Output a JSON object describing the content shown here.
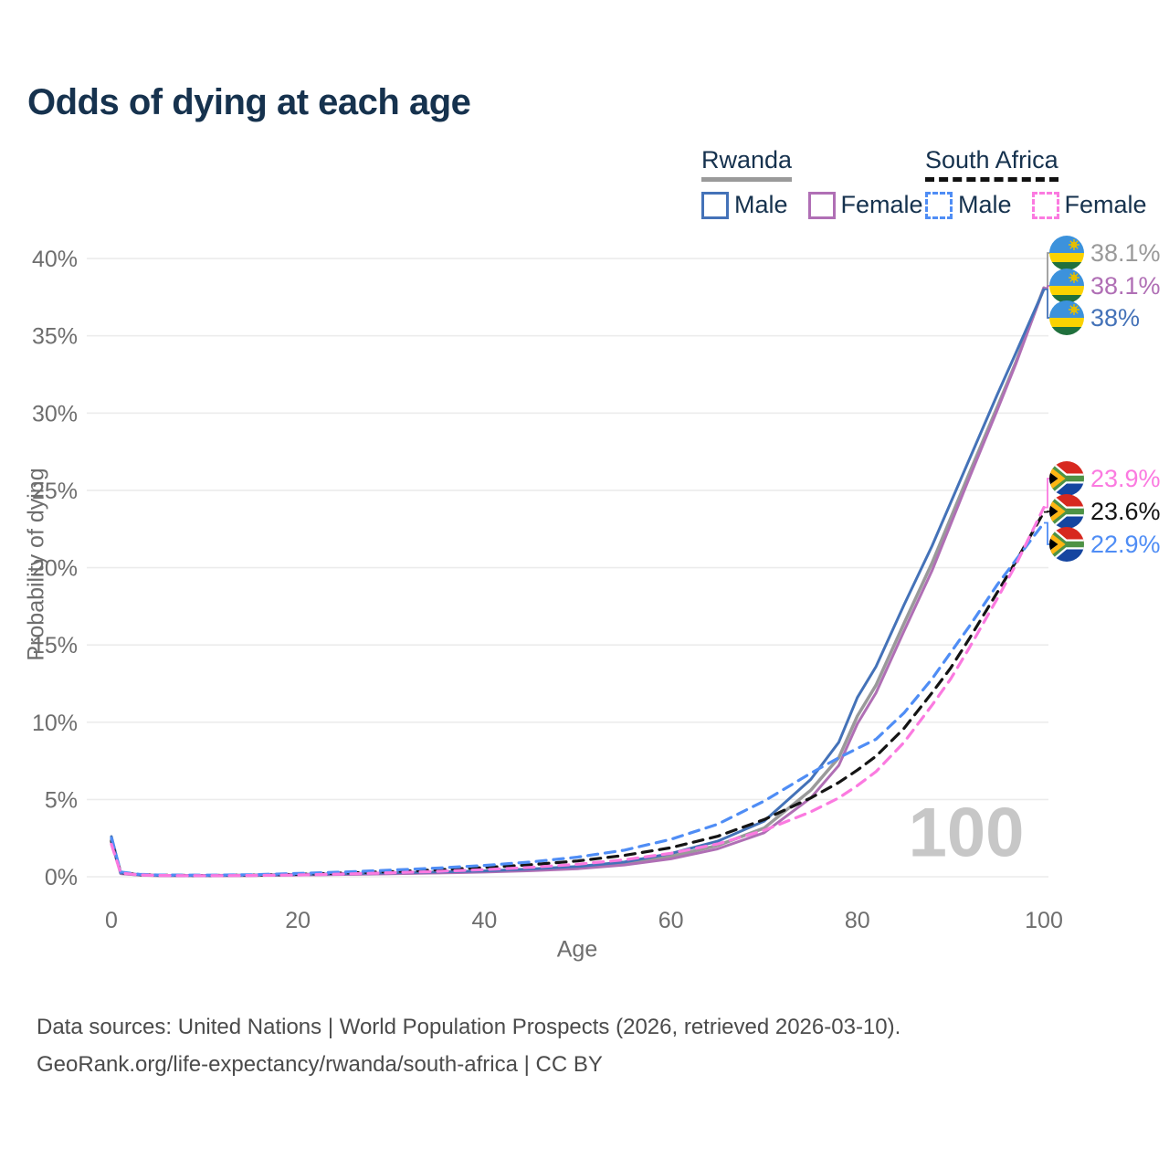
{
  "title": "Odds of dying at each age",
  "legend": {
    "rwanda": {
      "label": "Rwanda",
      "male": "Male",
      "female": "Female"
    },
    "south_africa": {
      "label": "South Africa",
      "male": "Male",
      "female": "Female"
    }
  },
  "axes": {
    "y_label": "Probability of dying",
    "x_label": "Age"
  },
  "watermark": "100",
  "footer": {
    "line1": "Data sources: United Nations | World Population Prospects (2026, retrieved 2026-03-10).",
    "line2": "GeoRank.org/life-expectancy/rwanda/south-africa | CC BY"
  },
  "colors": {
    "rwanda_male": "#4472b8",
    "rwanda_female": "#b06fb5",
    "rwanda_total": "#9a9a9a",
    "sa_male": "#4f8df5",
    "sa_female": "#fb7ae0",
    "sa_total": "#141414",
    "grid": "#ececec",
    "tick_text": "#6e6e6e",
    "title_text": "#16324e"
  },
  "end_labels": [
    {
      "series": "rwanda_total",
      "country": "rwanda",
      "value": "38.1%",
      "color": "#9a9a9a"
    },
    {
      "series": "rwanda_female",
      "country": "rwanda",
      "value": "38.1%",
      "color": "#b06fb5"
    },
    {
      "series": "rwanda_male",
      "country": "rwanda",
      "value": "38%",
      "color": "#4472b8"
    },
    {
      "series": "sa_female",
      "country": "south-africa",
      "value": "23.9%",
      "color": "#fb7ae0"
    },
    {
      "series": "sa_total",
      "country": "south-africa",
      "value": "23.6%",
      "color": "#141414"
    },
    {
      "series": "sa_male",
      "country": "south-africa",
      "value": "22.9%",
      "color": "#4f8df5"
    }
  ],
  "chart_data": {
    "type": "line",
    "title": "Odds of dying at each age",
    "xlabel": "Age",
    "ylabel": "Probability of dying",
    "xlim": [
      0,
      100
    ],
    "ylim_pct": [
      0,
      40
    ],
    "x_ticks": [
      0,
      20,
      40,
      60,
      80,
      100
    ],
    "y_ticks": [
      {
        "pct": 0,
        "label": "0%"
      },
      {
        "pct": 5,
        "label": "5%"
      },
      {
        "pct": 10,
        "label": "10%"
      },
      {
        "pct": 15,
        "label": "15%"
      },
      {
        "pct": 20,
        "label": "20%"
      },
      {
        "pct": 25,
        "label": "25%"
      },
      {
        "pct": 30,
        "label": "30%"
      },
      {
        "pct": 35,
        "label": "35%"
      },
      {
        "pct": 40,
        "label": "40%"
      }
    ],
    "grid": "horizontal",
    "legend_position": "top-right",
    "age_watermark": "100",
    "x": [
      0,
      1,
      3,
      5,
      10,
      15,
      20,
      25,
      30,
      35,
      40,
      45,
      50,
      55,
      60,
      65,
      70,
      75,
      78,
      80,
      82,
      85,
      88,
      90,
      92,
      95,
      97,
      100
    ],
    "series": [
      {
        "id": "rwanda_total",
        "name": "Rwanda (both sexes)",
        "style": "solid",
        "color": "#9a9a9a",
        "width": 3.5,
        "values": [
          2.4,
          0.22,
          0.12,
          0.08,
          0.07,
          0.09,
          0.13,
          0.17,
          0.22,
          0.27,
          0.34,
          0.44,
          0.58,
          0.85,
          1.32,
          2.02,
          3.15,
          5.6,
          7.7,
          10.4,
          12.4,
          16.4,
          20.3,
          23.2,
          26.1,
          30.4,
          33.3,
          38.1
        ],
        "end_value_pct": 38.1
      },
      {
        "id": "rwanda_female",
        "name": "Rwanda Female",
        "style": "solid",
        "color": "#b06fb5",
        "width": 3,
        "values": [
          2.2,
          0.2,
          0.11,
          0.07,
          0.06,
          0.08,
          0.11,
          0.15,
          0.19,
          0.24,
          0.3,
          0.39,
          0.52,
          0.76,
          1.16,
          1.8,
          2.85,
          5.1,
          7.2,
          9.9,
          11.9,
          15.9,
          19.8,
          22.8,
          25.8,
          30.2,
          33.2,
          38.1
        ],
        "end_value_pct": 38.1
      },
      {
        "id": "rwanda_male",
        "name": "Rwanda Male",
        "style": "solid",
        "color": "#4472b8",
        "width": 3,
        "values": [
          2.6,
          0.25,
          0.13,
          0.09,
          0.08,
          0.1,
          0.15,
          0.2,
          0.25,
          0.31,
          0.38,
          0.5,
          0.66,
          0.95,
          1.5,
          2.3,
          3.6,
          6.3,
          8.7,
          11.6,
          13.6,
          17.6,
          21.4,
          24.2,
          27.0,
          31.2,
          33.9,
          38.0
        ],
        "end_value_pct": 38.0
      },
      {
        "id": "sa_total",
        "name": "South Africa (both sexes)",
        "style": "dashed",
        "color": "#141414",
        "width": 3.2,
        "values": [
          2.3,
          0.27,
          0.14,
          0.1,
          0.08,
          0.1,
          0.16,
          0.24,
          0.33,
          0.45,
          0.59,
          0.78,
          1.02,
          1.38,
          1.88,
          2.62,
          3.7,
          5.1,
          6.1,
          6.9,
          7.8,
          9.6,
          11.9,
          13.5,
          15.4,
          18.4,
          20.4,
          23.6
        ],
        "end_value_pct": 23.6
      },
      {
        "id": "sa_male",
        "name": "South Africa Male",
        "style": "dashed",
        "color": "#4f8df5",
        "width": 3.2,
        "values": [
          2.5,
          0.3,
          0.16,
          0.11,
          0.1,
          0.13,
          0.21,
          0.31,
          0.43,
          0.56,
          0.73,
          0.96,
          1.27,
          1.72,
          2.42,
          3.4,
          4.9,
          6.7,
          7.7,
          8.3,
          8.9,
          10.6,
          12.8,
          14.5,
          16.2,
          18.9,
          20.5,
          22.9
        ],
        "end_value_pct": 22.9
      },
      {
        "id": "sa_female",
        "name": "South Africa Female",
        "style": "dashed",
        "color": "#fb7ae0",
        "width": 3.2,
        "values": [
          2.1,
          0.24,
          0.12,
          0.08,
          0.07,
          0.08,
          0.12,
          0.18,
          0.26,
          0.35,
          0.46,
          0.61,
          0.81,
          1.1,
          1.52,
          2.12,
          3.0,
          4.2,
          5.1,
          5.9,
          6.8,
          8.7,
          11.1,
          12.8,
          14.8,
          18.0,
          20.2,
          23.9
        ],
        "end_value_pct": 23.9
      }
    ]
  }
}
